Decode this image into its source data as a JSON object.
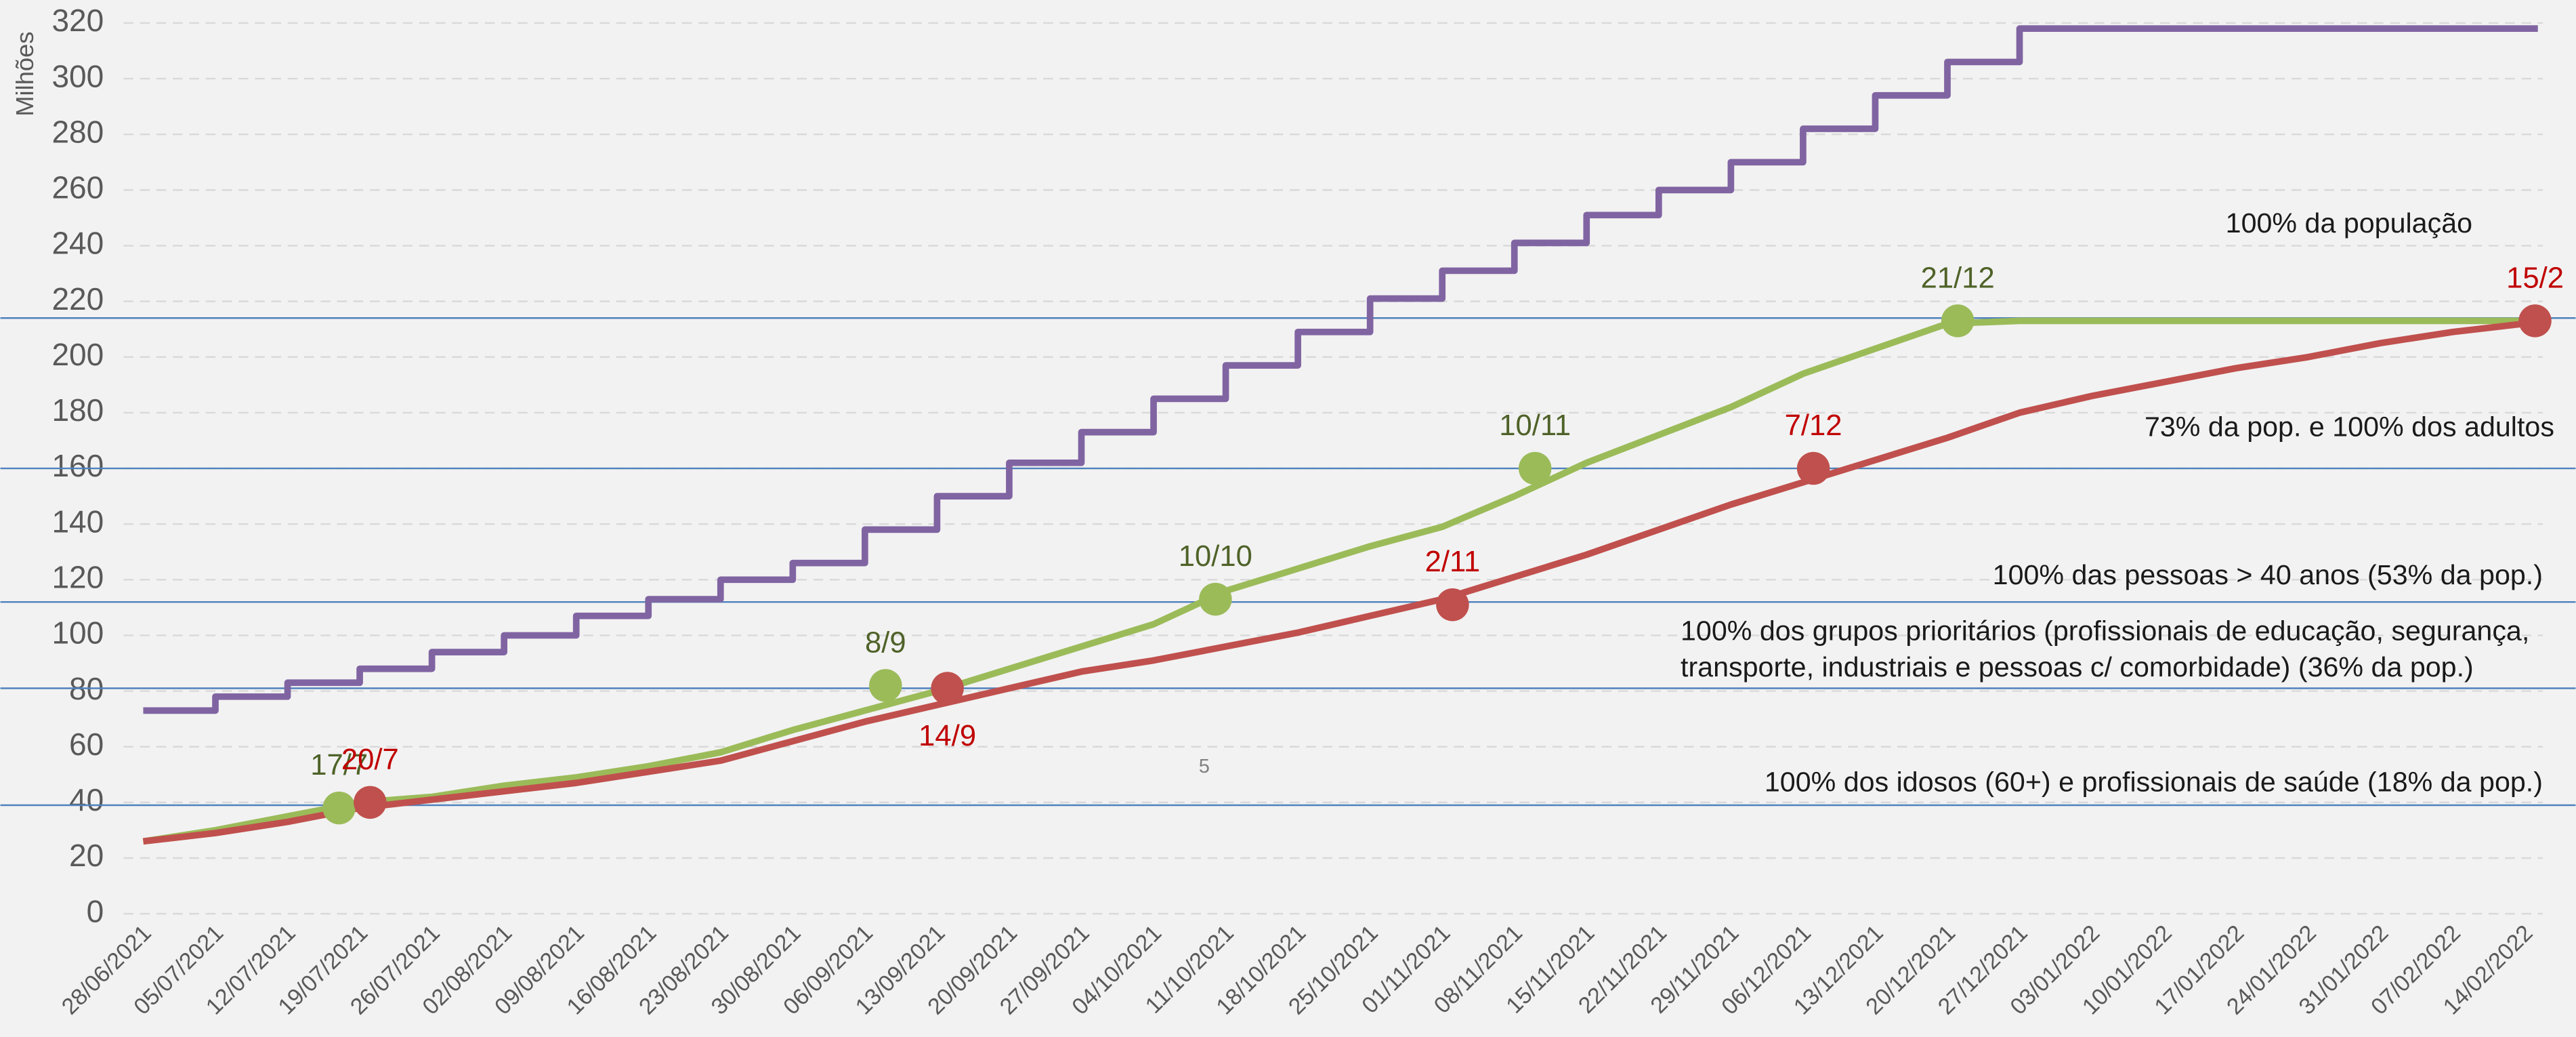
{
  "chart_data": {
    "type": "line",
    "y_label": "Milhões",
    "categories": [
      "28/06/2021",
      "05/07/2021",
      "12/07/2021",
      "19/07/2021",
      "26/07/2021",
      "02/08/2021",
      "09/08/2021",
      "16/08/2021",
      "23/08/2021",
      "30/08/2021",
      "06/09/2021",
      "13/09/2021",
      "20/09/2021",
      "27/09/2021",
      "04/10/2021",
      "11/10/2021",
      "18/10/2021",
      "25/10/2021",
      "01/11/2021",
      "08/11/2021",
      "15/11/2021",
      "22/11/2021",
      "29/11/2021",
      "06/12/2021",
      "13/12/2021",
      "20/12/2021",
      "27/12/2021",
      "03/01/2022",
      "10/01/2022",
      "17/01/2022",
      "24/01/2022",
      "31/01/2022",
      "07/02/2022",
      "14/02/2022"
    ],
    "series": [
      {
        "color": "#8064a2",
        "step": "after",
        "values": [
          73,
          78,
          83,
          88,
          94,
          100,
          107,
          113,
          120,
          126,
          138,
          150,
          162,
          173,
          185,
          197,
          209,
          221,
          231,
          241,
          251,
          260,
          270,
          282,
          294,
          306,
          318,
          318,
          318,
          318,
          318,
          318,
          318,
          318
        ]
      },
      {
        "color": "#9bbb59",
        "values": [
          26,
          30,
          35,
          40,
          42,
          46,
          49,
          53,
          58,
          66,
          73,
          80,
          88,
          96,
          104,
          116,
          124,
          132,
          139,
          150,
          162,
          172,
          182,
          194,
          203,
          212,
          213,
          213,
          213,
          213,
          213,
          213,
          213,
          213
        ]
      },
      {
        "color": "#c0504d",
        "values": [
          26,
          29,
          33,
          38,
          41,
          44,
          47,
          51,
          55,
          62,
          69,
          75,
          81,
          87,
          91,
          96,
          101,
          107,
          113,
          121,
          129,
          138,
          147,
          155,
          163,
          171,
          180,
          186,
          191,
          196,
          200,
          205,
          209,
          212
        ]
      }
    ],
    "markers": [
      {
        "series": 1,
        "label": "17/7",
        "value": 38,
        "label_position": "above"
      },
      {
        "series": 2,
        "label": "20/7",
        "value": 40,
        "label_position": "above"
      },
      {
        "series": 1,
        "label": "8/9",
        "value": 82,
        "label_position": "above"
      },
      {
        "series": 2,
        "label": "14/9",
        "value": 81,
        "label_position": "below"
      },
      {
        "series": 1,
        "label": "10/10",
        "value": 113,
        "label_position": "above"
      },
      {
        "series": 2,
        "label": "2/11",
        "value": 111,
        "label_position": "above"
      },
      {
        "series": 1,
        "label": "10/11",
        "value": 160,
        "label_position": "above"
      },
      {
        "series": 2,
        "label": "7/12",
        "value": 160,
        "label_position": "above"
      },
      {
        "series": 1,
        "label": "21/12",
        "value": 213,
        "label_position": "above"
      },
      {
        "series": 2,
        "label": "15/2",
        "value": 213,
        "label_position": "above"
      }
    ],
    "annotations": [
      {
        "value": 214,
        "text": [
          "100% da população"
        ]
      },
      {
        "value": 160,
        "text": [
          "73% da pop. e 100% dos adultos"
        ]
      },
      {
        "value": 112,
        "text": [
          "100% das pessoas > 40 anos (53% da pop.)"
        ]
      },
      {
        "value": 81,
        "text": [
          "100% dos grupos prioritários (profissionais de educação, segurança,",
          "transporte, industriais e pessoas c/ comorbidade) (36% da pop.)"
        ]
      },
      {
        "value": 39,
        "text": [
          "100% dos idosos (60+) e profissionais de saúde (18% da pop.)"
        ]
      }
    ],
    "note": "5",
    "ylim": [
      0,
      320
    ],
    "yticks": [
      0,
      20,
      40,
      60,
      80,
      100,
      120,
      140,
      160,
      180,
      200,
      220,
      240,
      260,
      280,
      300,
      320
    ],
    "grid": true
  }
}
